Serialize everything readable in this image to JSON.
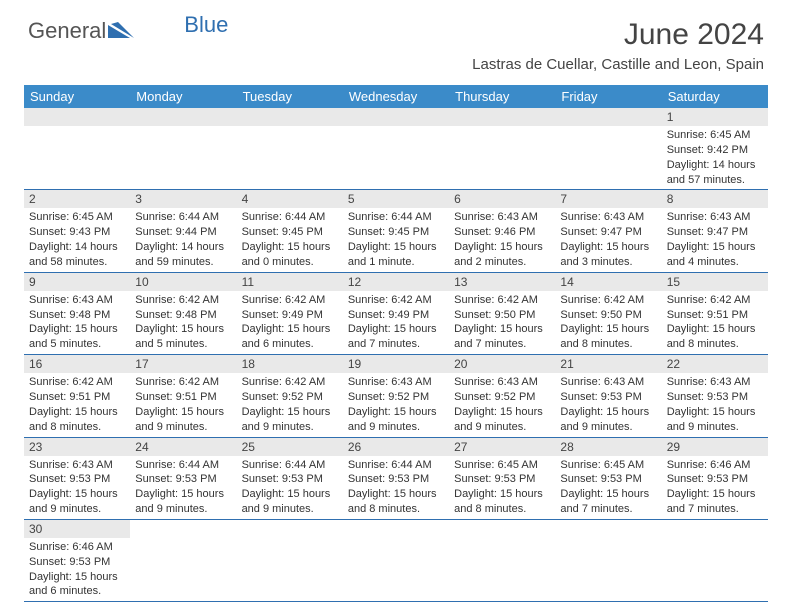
{
  "brand": {
    "part1": "General",
    "part2": "Blue"
  },
  "title": "June 2024",
  "location": "Lastras de Cuellar, Castille and Leon, Spain",
  "colors": {
    "header_bg": "#3b8bc9",
    "header_text": "#ffffff",
    "rule": "#2f6fb0",
    "daynum_bg": "#e9e9e9",
    "text": "#333333",
    "title_text": "#444444",
    "logo_blue": "#2f6fb0"
  },
  "weekdays": [
    "Sunday",
    "Monday",
    "Tuesday",
    "Wednesday",
    "Thursday",
    "Friday",
    "Saturday"
  ],
  "first_weekday": 6,
  "days": [
    {
      "n": 1,
      "sunrise": "6:45 AM",
      "sunset": "9:42 PM",
      "daylight": "14 hours and 57 minutes."
    },
    {
      "n": 2,
      "sunrise": "6:45 AM",
      "sunset": "9:43 PM",
      "daylight": "14 hours and 58 minutes."
    },
    {
      "n": 3,
      "sunrise": "6:44 AM",
      "sunset": "9:44 PM",
      "daylight": "14 hours and 59 minutes."
    },
    {
      "n": 4,
      "sunrise": "6:44 AM",
      "sunset": "9:45 PM",
      "daylight": "15 hours and 0 minutes."
    },
    {
      "n": 5,
      "sunrise": "6:44 AM",
      "sunset": "9:45 PM",
      "daylight": "15 hours and 1 minute."
    },
    {
      "n": 6,
      "sunrise": "6:43 AM",
      "sunset": "9:46 PM",
      "daylight": "15 hours and 2 minutes."
    },
    {
      "n": 7,
      "sunrise": "6:43 AM",
      "sunset": "9:47 PM",
      "daylight": "15 hours and 3 minutes."
    },
    {
      "n": 8,
      "sunrise": "6:43 AM",
      "sunset": "9:47 PM",
      "daylight": "15 hours and 4 minutes."
    },
    {
      "n": 9,
      "sunrise": "6:43 AM",
      "sunset": "9:48 PM",
      "daylight": "15 hours and 5 minutes."
    },
    {
      "n": 10,
      "sunrise": "6:42 AM",
      "sunset": "9:48 PM",
      "daylight": "15 hours and 5 minutes."
    },
    {
      "n": 11,
      "sunrise": "6:42 AM",
      "sunset": "9:49 PM",
      "daylight": "15 hours and 6 minutes."
    },
    {
      "n": 12,
      "sunrise": "6:42 AM",
      "sunset": "9:49 PM",
      "daylight": "15 hours and 7 minutes."
    },
    {
      "n": 13,
      "sunrise": "6:42 AM",
      "sunset": "9:50 PM",
      "daylight": "15 hours and 7 minutes."
    },
    {
      "n": 14,
      "sunrise": "6:42 AM",
      "sunset": "9:50 PM",
      "daylight": "15 hours and 8 minutes."
    },
    {
      "n": 15,
      "sunrise": "6:42 AM",
      "sunset": "9:51 PM",
      "daylight": "15 hours and 8 minutes."
    },
    {
      "n": 16,
      "sunrise": "6:42 AM",
      "sunset": "9:51 PM",
      "daylight": "15 hours and 8 minutes."
    },
    {
      "n": 17,
      "sunrise": "6:42 AM",
      "sunset": "9:51 PM",
      "daylight": "15 hours and 9 minutes."
    },
    {
      "n": 18,
      "sunrise": "6:42 AM",
      "sunset": "9:52 PM",
      "daylight": "15 hours and 9 minutes."
    },
    {
      "n": 19,
      "sunrise": "6:43 AM",
      "sunset": "9:52 PM",
      "daylight": "15 hours and 9 minutes."
    },
    {
      "n": 20,
      "sunrise": "6:43 AM",
      "sunset": "9:52 PM",
      "daylight": "15 hours and 9 minutes."
    },
    {
      "n": 21,
      "sunrise": "6:43 AM",
      "sunset": "9:53 PM",
      "daylight": "15 hours and 9 minutes."
    },
    {
      "n": 22,
      "sunrise": "6:43 AM",
      "sunset": "9:53 PM",
      "daylight": "15 hours and 9 minutes."
    },
    {
      "n": 23,
      "sunrise": "6:43 AM",
      "sunset": "9:53 PM",
      "daylight": "15 hours and 9 minutes."
    },
    {
      "n": 24,
      "sunrise": "6:44 AM",
      "sunset": "9:53 PM",
      "daylight": "15 hours and 9 minutes."
    },
    {
      "n": 25,
      "sunrise": "6:44 AM",
      "sunset": "9:53 PM",
      "daylight": "15 hours and 9 minutes."
    },
    {
      "n": 26,
      "sunrise": "6:44 AM",
      "sunset": "9:53 PM",
      "daylight": "15 hours and 8 minutes."
    },
    {
      "n": 27,
      "sunrise": "6:45 AM",
      "sunset": "9:53 PM",
      "daylight": "15 hours and 8 minutes."
    },
    {
      "n": 28,
      "sunrise": "6:45 AM",
      "sunset": "9:53 PM",
      "daylight": "15 hours and 7 minutes."
    },
    {
      "n": 29,
      "sunrise": "6:46 AM",
      "sunset": "9:53 PM",
      "daylight": "15 hours and 7 minutes."
    },
    {
      "n": 30,
      "sunrise": "6:46 AM",
      "sunset": "9:53 PM",
      "daylight": "15 hours and 6 minutes."
    }
  ],
  "labels": {
    "sunrise": "Sunrise:",
    "sunset": "Sunset:",
    "daylight": "Daylight:"
  },
  "typography": {
    "title_pt": 30,
    "location_pt": 15,
    "weekday_pt": 13,
    "daynum_pt": 12,
    "body_pt": 11
  }
}
